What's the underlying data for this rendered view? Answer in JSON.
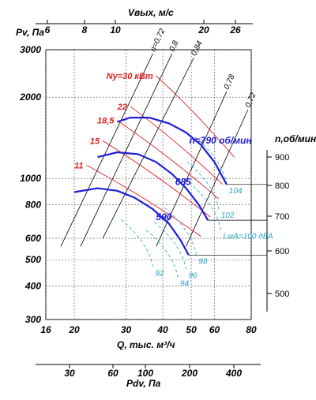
{
  "chart_data": {
    "type": "line",
    "axes": {
      "x_bottom": {
        "label": "Q, тыс. м³/ч",
        "ticks": [
          16,
          20,
          30,
          40,
          50,
          60,
          80
        ],
        "range": [
          16,
          80
        ],
        "scale": "log"
      },
      "y_left": {
        "label": "Pv, Па",
        "ticks": [
          300,
          400,
          500,
          600,
          800,
          1000,
          2000,
          3000
        ],
        "range": [
          300,
          3000
        ],
        "scale": "log"
      },
      "x_top": {
        "label": "Vвых, м/с",
        "ticks": [
          6,
          8,
          10,
          20,
          26
        ]
      },
      "y_right": {
        "label": "n, об/мин",
        "ticks": [
          500,
          600,
          700,
          800,
          900
        ]
      },
      "x_bottom2": {
        "label": "Pdv, Па",
        "ticks": [
          30,
          60,
          100,
          200,
          400
        ]
      }
    },
    "speed_curves": [
      {
        "name": "n=790 об/мин",
        "x": [
          28,
          31,
          36,
          42,
          48,
          54,
          60,
          66
        ],
        "y": [
          1620,
          1680,
          1680,
          1600,
          1480,
          1330,
          1150,
          950
        ]
      },
      {
        "name": "685",
        "x": [
          24,
          28,
          33,
          38,
          43,
          48,
          53,
          57
        ],
        "y": [
          1200,
          1250,
          1230,
          1150,
          1040,
          920,
          800,
          700
        ]
      },
      {
        "name": "590",
        "x": [
          20,
          24,
          28,
          32,
          37,
          42,
          46,
          49
        ],
        "y": [
          890,
          920,
          900,
          850,
          770,
          680,
          590,
          520
        ]
      }
    ],
    "power_lines": [
      {
        "label": "Nу=30 кВт",
        "x": [
          38,
          70
        ],
        "y": [
          2400,
          1200
        ]
      },
      {
        "label": "22",
        "x": [
          31,
          64
        ],
        "y": [
          1850,
          950
        ]
      },
      {
        "label": "18,5",
        "x": [
          28,
          62
        ],
        "y": [
          1640,
          840
        ]
      },
      {
        "label": "15",
        "x": [
          25,
          58
        ],
        "y": [
          1380,
          720
        ]
      },
      {
        "label": "11",
        "x": [
          22,
          54
        ],
        "y": [
          1120,
          610
        ]
      }
    ],
    "efficiency_lines": [
      {
        "label": "η=0,72",
        "x": [
          18,
          37
        ],
        "y": [
          560,
          2900
        ]
      },
      {
        "label": "0,8",
        "x": [
          21,
          43
        ],
        "y": [
          560,
          2900
        ]
      },
      {
        "label": "0,84",
        "x": [
          25,
          51
        ],
        "y": [
          600,
          2800
        ]
      },
      {
        "label": "0,78",
        "x": [
          38,
          66
        ],
        "y": [
          560,
          2100
        ]
      },
      {
        "label": "0,72",
        "x": [
          48,
          78
        ],
        "y": [
          560,
          1800
        ]
      }
    ],
    "noise_levels": [
      {
        "label": "LwA=100 дБА",
        "x": 63,
        "y": 645
      },
      {
        "label": "104",
        "x": 66,
        "y": 950
      },
      {
        "label": "102",
        "x": 62,
        "y": 770
      },
      {
        "label": "98",
        "x": 52,
        "y": 520
      },
      {
        "label": "96",
        "x": 48,
        "y": 460
      },
      {
        "label": "94",
        "x": 45,
        "y": 430
      },
      {
        "label": "92",
        "x": 37,
        "y": 470
      }
    ]
  },
  "labels": {
    "x_bottom_title": "Q, тыс. м³/ч",
    "y_left_title": "Pv, Па",
    "x_top_title": "Vвых, м/с",
    "y_right_title": "n,об/мин",
    "x_bottom2_title": "Pdv, Па"
  },
  "colors": {
    "speed": "#1d1dd8",
    "power": "#e02020",
    "efficiency": "#000000",
    "noise": "#2aa3c4",
    "grid": "#555555"
  }
}
